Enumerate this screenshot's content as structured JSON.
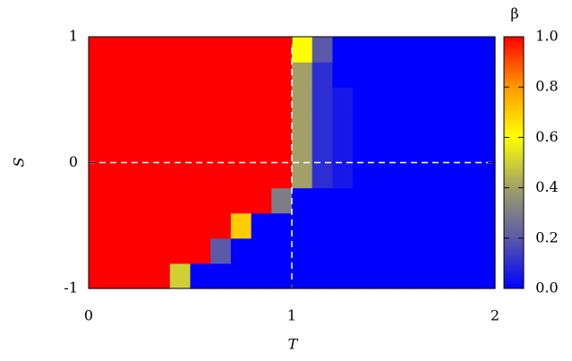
{
  "chart_data": {
    "type": "heatmap",
    "x_label": "T",
    "y_label": "S",
    "colorbar_label": "β",
    "x": [
      0.05,
      0.15,
      0.25,
      0.35,
      0.45,
      0.55,
      0.65,
      0.75,
      0.85,
      0.95,
      1.05,
      1.15,
      1.25,
      1.35,
      1.45,
      1.55,
      1.65,
      1.75,
      1.85,
      1.95
    ],
    "y": [
      -0.9,
      -0.7,
      -0.5,
      -0.3,
      -0.1,
      0.1,
      0.3,
      0.5,
      0.7,
      0.9
    ],
    "z": [
      [
        1,
        1,
        1,
        1,
        0.5,
        0,
        0,
        0,
        0,
        0,
        0,
        0,
        0,
        0,
        0,
        0,
        0,
        0,
        0,
        0
      ],
      [
        1,
        1,
        1,
        1,
        1,
        1,
        0.2,
        0,
        0,
        0,
        0,
        0,
        0,
        0,
        0,
        0,
        0,
        0,
        0,
        0
      ],
      [
        1,
        1,
        1,
        1,
        1,
        1,
        1,
        0.7,
        0,
        0,
        0,
        0,
        0,
        0,
        0,
        0,
        0,
        0,
        0,
        0
      ],
      [
        1,
        1,
        1,
        1,
        1,
        1,
        1,
        1,
        1,
        0.3,
        0,
        0,
        0,
        0,
        0,
        0,
        0,
        0,
        0,
        0
      ],
      [
        1,
        1,
        1,
        1,
        1,
        1,
        1,
        1,
        1,
        1,
        0.4,
        0.1,
        0.05,
        0,
        0,
        0,
        0,
        0,
        0,
        0
      ],
      [
        1,
        1,
        1,
        1,
        1,
        1,
        1,
        1,
        1,
        1,
        0.4,
        0.1,
        0.05,
        0,
        0,
        0,
        0,
        0,
        0,
        0
      ],
      [
        1,
        1,
        1,
        1,
        1,
        1,
        1,
        1,
        1,
        1,
        0.4,
        0.1,
        0.05,
        0,
        0,
        0,
        0,
        0,
        0,
        0
      ],
      [
        1,
        1,
        1,
        1,
        1,
        1,
        1,
        1,
        1,
        1,
        0.4,
        0.1,
        0.05,
        0,
        0,
        0,
        0,
        0,
        0,
        0
      ],
      [
        1,
        1,
        1,
        1,
        1,
        1,
        1,
        1,
        1,
        1,
        0.4,
        0.1,
        0,
        0,
        0,
        0,
        0,
        0,
        0,
        0
      ],
      [
        1,
        1,
        1,
        1,
        1,
        1,
        1,
        1,
        1,
        1,
        0.6,
        0.2,
        0,
        0,
        0,
        0,
        0,
        0,
        0,
        0
      ]
    ],
    "xlim": [
      0,
      2
    ],
    "xticks": [
      0,
      1,
      2
    ],
    "ylim": [
      -1,
      1
    ],
    "yticks": [
      -1,
      0,
      1
    ],
    "zlim": [
      0,
      1
    ],
    "zticks": [
      {
        "value": 0,
        "label": "0.0"
      },
      {
        "value": 0.2,
        "label": "0.2"
      },
      {
        "value": 0.4,
        "label": "0.4"
      },
      {
        "value": 0.6,
        "label": "0.6"
      },
      {
        "value": 0.8,
        "label": "0.8"
      },
      {
        "value": 1,
        "label": "1.0"
      }
    ],
    "colormap": [
      [
        0,
        "#0000ff"
      ],
      [
        0.2,
        "#5a5aa8"
      ],
      [
        0.4,
        "#a0a068"
      ],
      [
        0.6,
        "#ffff00"
      ],
      [
        0.8,
        "#ff9900"
      ],
      [
        1,
        "#ff0000"
      ]
    ],
    "reference_lines": {
      "x": 1,
      "y": 0
    }
  }
}
